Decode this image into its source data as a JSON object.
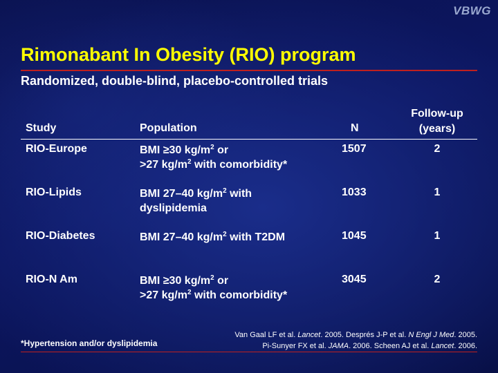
{
  "logo": "VBWG",
  "title": "Rimonabant In Obesity (RIO) program",
  "subtitle": "Randomized, double-blind, placebo-controlled trials",
  "table": {
    "headers": {
      "study": "Study",
      "population": "Population",
      "n": "N",
      "followup_line1": "Follow-up",
      "followup_line2": "(years)"
    },
    "rows": [
      {
        "study": "RIO-Europe",
        "pop_line1_a": "BMI ≥30 kg/m",
        "pop_line1_sup": "2",
        "pop_line1_b": " or",
        "pop_line2_a": ">27 kg/m",
        "pop_line2_sup": "2",
        "pop_line2_b": " with comorbidity*",
        "n": "1507",
        "followup": "2"
      },
      {
        "study": "RIO-Lipids",
        "pop_line1_a": "BMI 27–40 kg/m",
        "pop_line1_sup": "2",
        "pop_line1_b": " with",
        "pop_line2_a": "dyslipidemia",
        "pop_line2_sup": "",
        "pop_line2_b": "",
        "n": "1033",
        "followup": "1"
      },
      {
        "study": "RIO-Diabetes",
        "pop_line1_a": "BMI 27–40 kg/m",
        "pop_line1_sup": "2",
        "pop_line1_b": " with T2DM",
        "pop_line2_a": "",
        "pop_line2_sup": "",
        "pop_line2_b": "",
        "n": "1045",
        "followup": "1"
      },
      {
        "study": "RIO-N Am",
        "pop_line1_a": "BMI ≥30 kg/m",
        "pop_line1_sup": "2",
        "pop_line1_b": " or",
        "pop_line2_a": ">27 kg/m",
        "pop_line2_sup": "2",
        "pop_line2_b": " with comorbidity*",
        "n": "3045",
        "followup": "2"
      }
    ]
  },
  "footnote": "*Hypertension and/or dyslipidemia",
  "references": {
    "r1_author": "Van Gaal LF et al. ",
    "r1_journal": "Lancet",
    "r1_year": ". 2005. ",
    "r2_author": "Després J-P et al. ",
    "r2_journal": "N Engl J Med",
    "r2_year": ". 2005.",
    "r3_author": "Pi-Sunyer FX et al. ",
    "r3_journal": "JAMA",
    "r3_year": ". 2006. ",
    "r4_author": "Scheen AJ et al. ",
    "r4_journal": "Lancet",
    "r4_year": ". 2006."
  }
}
